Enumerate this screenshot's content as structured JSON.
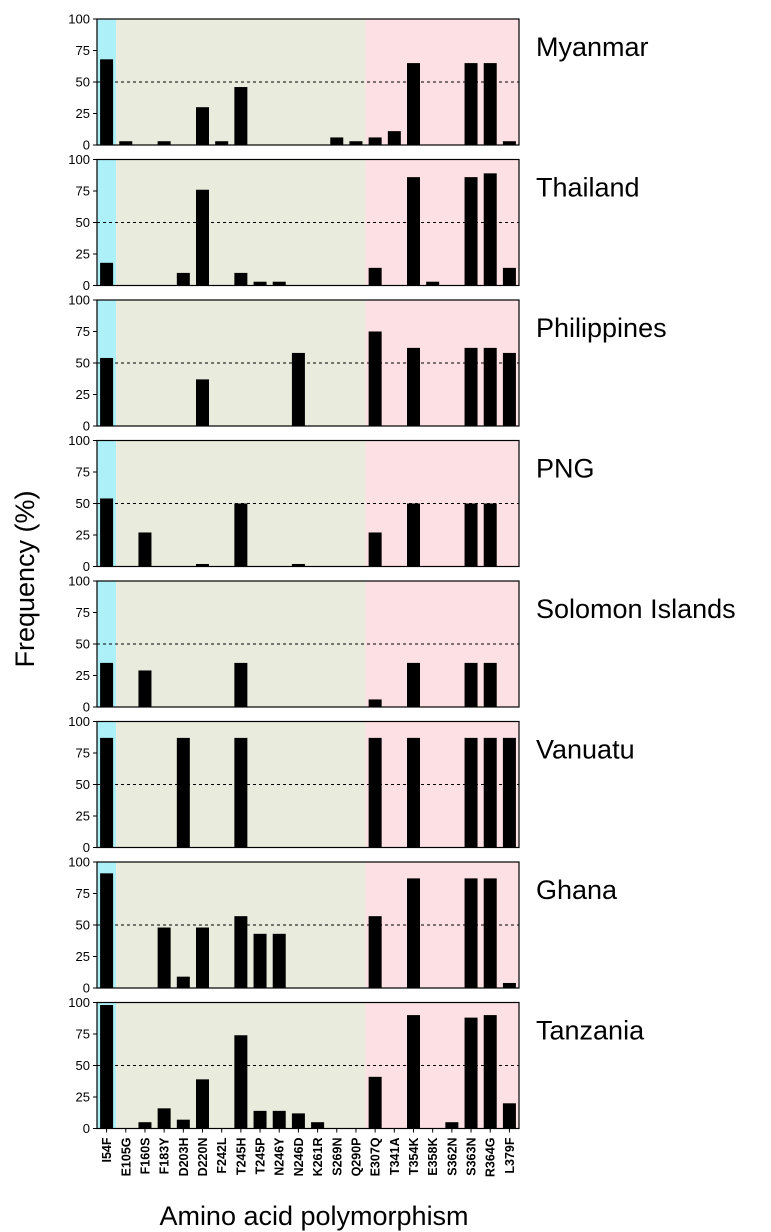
{
  "chart_data": {
    "type": "bar",
    "ylabel": "Frequency (%)",
    "xlabel": "Amino acid polymorphism",
    "ylim": [
      0,
      100
    ],
    "yticks": [
      0,
      25,
      50,
      75,
      100
    ],
    "reference_line": 50,
    "categories": [
      "I54F",
      "E105G",
      "F160S",
      "F183Y",
      "D203H",
      "D220N",
      "F242L",
      "T245H",
      "T245P",
      "N246Y",
      "N246D",
      "K261R",
      "S269N",
      "Q290P",
      "E307Q",
      "T341A",
      "T354K",
      "E358K",
      "S362N",
      "S363N",
      "R364G",
      "L379F"
    ],
    "regions": [
      {
        "from": "I54F",
        "to": "I54F",
        "color": "#aef0f8"
      },
      {
        "from": "E105G",
        "to": "Q290P",
        "color": "#e9ecdc"
      },
      {
        "from": "E307Q",
        "to": "L379F",
        "color": "#fde0e3"
      }
    ],
    "panels": [
      {
        "name": "Myanmar",
        "values": [
          68,
          3,
          0,
          3,
          0,
          30,
          3,
          46,
          0,
          0,
          0,
          0,
          6,
          3,
          6,
          11,
          65,
          0,
          0,
          65,
          65,
          3
        ]
      },
      {
        "name": "Thailand",
        "values": [
          18,
          0,
          0,
          0,
          10,
          76,
          0,
          10,
          3,
          3,
          0,
          0,
          0,
          0,
          14,
          0,
          86,
          3,
          0,
          86,
          89,
          14
        ]
      },
      {
        "name": "Philippines",
        "values": [
          54,
          0,
          0,
          0,
          0,
          37,
          0,
          0,
          0,
          0,
          58,
          0,
          0,
          0,
          75,
          0,
          62,
          0,
          0,
          62,
          62,
          58
        ]
      },
      {
        "name": "PNG",
        "values": [
          54,
          0,
          27,
          0,
          0,
          2,
          0,
          50,
          0,
          0,
          2,
          0,
          0,
          0,
          27,
          0,
          50,
          0,
          0,
          50,
          50,
          0
        ]
      },
      {
        "name": "Solomon Islands",
        "values": [
          35,
          0,
          29,
          0,
          0,
          0,
          0,
          35,
          0,
          0,
          0,
          0,
          0,
          0,
          6,
          0,
          35,
          0,
          0,
          35,
          35,
          0
        ]
      },
      {
        "name": "Vanuatu",
        "values": [
          87,
          0,
          0,
          0,
          87,
          0,
          0,
          87,
          0,
          0,
          0,
          0,
          0,
          0,
          87,
          0,
          87,
          0,
          0,
          87,
          87,
          87
        ]
      },
      {
        "name": "Ghana",
        "values": [
          91,
          0,
          0,
          48,
          9,
          48,
          0,
          57,
          43,
          43,
          0,
          0,
          0,
          0,
          57,
          0,
          87,
          0,
          0,
          87,
          87,
          4
        ]
      },
      {
        "name": "Tanzania",
        "values": [
          98,
          0,
          5,
          16,
          7,
          39,
          0,
          74,
          14,
          14,
          12,
          5,
          0,
          0,
          41,
          0,
          90,
          0,
          5,
          88,
          90,
          20
        ]
      }
    ]
  }
}
